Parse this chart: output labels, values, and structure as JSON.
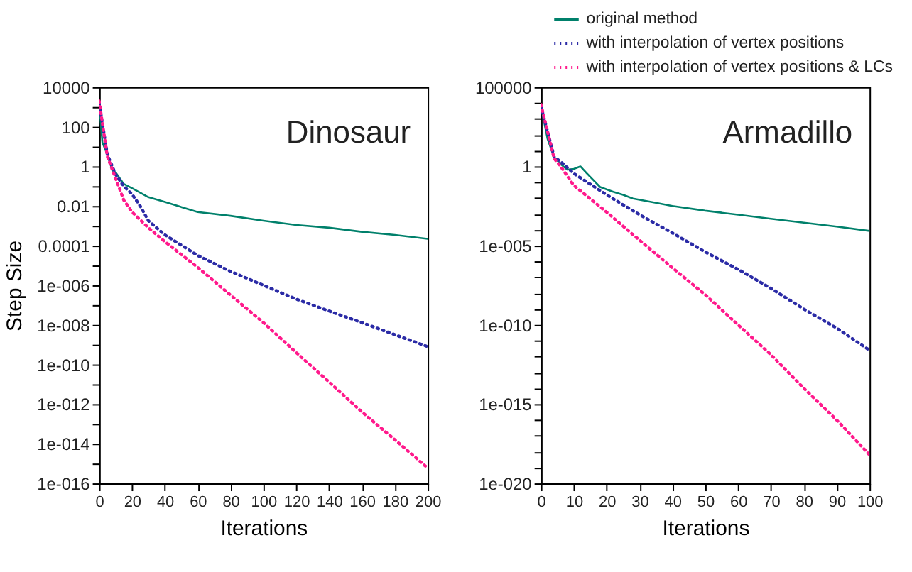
{
  "chart_data": [
    {
      "type": "line",
      "title": "Dinosaur",
      "xlabel": "Iterations",
      "ylabel": "Step Size",
      "log": "y",
      "grid": false,
      "marker": "none",
      "legend": false,
      "xlim": [
        0,
        200
      ],
      "xticks": [
        0,
        20,
        40,
        60,
        80,
        100,
        120,
        140,
        160,
        180,
        200
      ],
      "ylim": [
        1e-16,
        10000
      ],
      "yticks": [
        {
          "value": 10000,
          "label": "10000"
        },
        {
          "value": 1000,
          "label": null
        },
        {
          "value": 100,
          "label": "100"
        },
        {
          "value": 10,
          "label": null
        },
        {
          "value": 1,
          "label": "1"
        },
        {
          "value": 0.1,
          "label": null
        },
        {
          "value": 0.01,
          "label": "0.01"
        },
        {
          "value": 0.001,
          "label": null
        },
        {
          "value": 0.0001,
          "label": "0.0001"
        },
        {
          "value": 1e-05,
          "label": null
        },
        {
          "value": 1e-06,
          "label": "1e-006"
        },
        {
          "value": 1e-07,
          "label": null
        },
        {
          "value": 1e-08,
          "label": "1e-008"
        },
        {
          "value": 1e-09,
          "label": null
        },
        {
          "value": 1e-10,
          "label": "1e-010"
        },
        {
          "value": 1e-11,
          "label": null
        },
        {
          "value": 1e-12,
          "label": "1e-012"
        },
        {
          "value": 1e-13,
          "label": null
        },
        {
          "value": 1e-14,
          "label": "1e-014"
        },
        {
          "value": 1e-15,
          "label": null
        },
        {
          "value": 1e-16,
          "label": "1e-016"
        }
      ],
      "series": [
        {
          "color": "#00806b",
          "line_style": "solid",
          "x": [
            0,
            2,
            5,
            8,
            10,
            15,
            20,
            30,
            40,
            60,
            80,
            100,
            120,
            140,
            160,
            180,
            200
          ],
          "values": [
            1600,
            16,
            4,
            0.63,
            0.5,
            0.13,
            0.08,
            0.028,
            0.016,
            0.005,
            0.0032,
            0.0018,
            0.0011,
            0.0008,
            0.0005,
            0.00035,
            0.00022
          ]
        },
        {
          "color": "#2b2ba6",
          "line_style": "dotted",
          "x": [
            0,
            5,
            10,
            15,
            20,
            25,
            30,
            40,
            60,
            80,
            100,
            120,
            140,
            160,
            180,
            200
          ],
          "values": [
            1600,
            4,
            0.4,
            0.1,
            0.04,
            0.01,
            0.0018,
            0.00035,
            3.2e-05,
            5e-06,
            1e-06,
            2e-07,
            5e-08,
            1.3e-08,
            3.2e-09,
            8e-10
          ]
        },
        {
          "color": "#ff1a8c",
          "line_style": "dotted",
          "x": [
            0,
            5,
            10,
            15,
            20,
            30,
            40,
            60,
            80,
            100,
            120,
            140,
            160,
            180,
            200
          ],
          "values": [
            2000,
            3.2,
            0.25,
            0.02,
            0.005,
            0.0008,
            0.00016,
            8e-06,
            3.2e-07,
            1.3e-08,
            4e-10,
            1.3e-11,
            4e-13,
            1.6e-14,
            6e-16
          ]
        }
      ]
    },
    {
      "type": "line",
      "title": "Armadillo",
      "xlabel": "Iterations",
      "log": "y",
      "grid": false,
      "marker": "none",
      "legend": "top right",
      "xlim": [
        0,
        100
      ],
      "xticks": [
        0,
        10,
        20,
        30,
        40,
        50,
        60,
        70,
        80,
        90,
        100
      ],
      "ylim": [
        1e-20,
        100000
      ],
      "yticks": [
        {
          "value": 100000,
          "label": "100000"
        },
        {
          "value": 10000,
          "label": null
        },
        {
          "value": 1000,
          "label": null
        },
        {
          "value": 100,
          "label": null
        },
        {
          "value": 10,
          "label": null
        },
        {
          "value": 1,
          "label": "1"
        },
        {
          "value": 0.1,
          "label": null
        },
        {
          "value": 0.01,
          "label": null
        },
        {
          "value": 0.001,
          "label": null
        },
        {
          "value": 0.0001,
          "label": null
        },
        {
          "value": 1e-05,
          "label": "1e-005"
        },
        {
          "value": 1e-06,
          "label": null
        },
        {
          "value": 1e-07,
          "label": null
        },
        {
          "value": 1e-08,
          "label": null
        },
        {
          "value": 1e-09,
          "label": null
        },
        {
          "value": 1e-10,
          "label": "1e-010"
        },
        {
          "value": 1e-11,
          "label": null
        },
        {
          "value": 1e-12,
          "label": null
        },
        {
          "value": 1e-13,
          "label": null
        },
        {
          "value": 1e-14,
          "label": null
        },
        {
          "value": 1e-15,
          "label": "1e-015"
        },
        {
          "value": 1e-16,
          "label": null
        },
        {
          "value": 1e-17,
          "label": null
        },
        {
          "value": 1e-18,
          "label": null
        },
        {
          "value": 1e-19,
          "label": null
        },
        {
          "value": 1e-20,
          "label": "1e-020"
        }
      ],
      "series": [
        {
          "name": "original method",
          "color": "#00806b",
          "line_style": "solid",
          "x": [
            0,
            2,
            4,
            6,
            8,
            10,
            12,
            14,
            18,
            22,
            25,
            28,
            35,
            40,
            50,
            60,
            70,
            80,
            90,
            100
          ],
          "values": [
            6300,
            55,
            3.8,
            1.4,
            0.63,
            0.7,
            1,
            0.36,
            0.05,
            0.025,
            0.016,
            0.0093,
            0.005,
            0.0032,
            0.0016,
            0.0009,
            0.0005,
            0.00028,
            0.00016,
            8.5e-05
          ]
        },
        {
          "name": "with interpolation of vertex positions",
          "color": "#2b2ba6",
          "line_style": "dotted",
          "x": [
            0,
            4,
            6,
            10,
            20,
            30,
            40,
            50,
            60,
            70,
            80,
            90,
            100
          ],
          "values": [
            6300,
            4,
            2,
            0.36,
            0.016,
            0.0009,
            6.3e-05,
            4e-06,
            3.2e-07,
            2e-08,
            1e-09,
            6.3e-11,
            2.5e-12
          ]
        },
        {
          "name": "with interpolation of vertex positions & LCs",
          "color": "#ff1a8c",
          "line_style": "dotted",
          "x": [
            0,
            4,
            6,
            10,
            20,
            30,
            40,
            50,
            60,
            70,
            80,
            90,
            100
          ],
          "values": [
            8000,
            3.2,
            1,
            0.063,
            0.0013,
            2.2e-05,
            4e-07,
            8e-09,
            1e-10,
            1.3e-12,
            1e-14,
            1e-16,
            6.3e-19
          ]
        }
      ]
    }
  ]
}
